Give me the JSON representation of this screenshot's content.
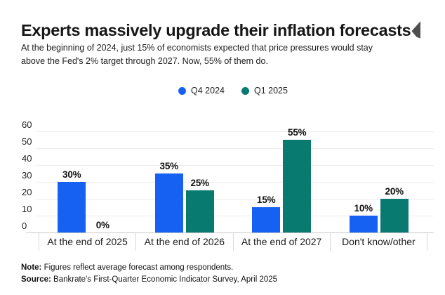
{
  "page": {
    "title": "Experts massively upgrade their inflation forecasts",
    "subtitle_lines": [
      "At the beginning of 2024, just 15% of economists expected that price pressures would stay",
      "above the Fed's 2% target through 2027. Now, 55% of them do."
    ],
    "note_label": "Note:",
    "note_text": " Figures reflect average forecast among respondents.",
    "source_label": "Source:",
    "source_text": " Bankrate's First-Quarter Economic Indicator Survey, April 2025"
  },
  "colors": {
    "q4_2024_blue": "#1660F2",
    "q1_2025_teal": "#087A70",
    "text": "#1B1B1B",
    "gridline": "#ECECEC",
    "axis_line": "#C8C8C8",
    "category_separator": "#D8D8D8"
  },
  "chart_data": {
    "type": "bar",
    "title": "Experts massively upgrade their inflation forecasts",
    "categories": [
      "At the end of 2025",
      "At the end of 2026",
      "At the end of 2027",
      "Don't know/other"
    ],
    "series": [
      {
        "name": "Q4 2024",
        "color": "#1660F2",
        "values": [
          30,
          35,
          15,
          10
        ],
        "labels": [
          "30%",
          "35%",
          "15%",
          "10%"
        ]
      },
      {
        "name": "Q1 2025",
        "color": "#087A70",
        "values": [
          0,
          25,
          55,
          20
        ],
        "labels": [
          "0%",
          "25%",
          "55%",
          "20%"
        ]
      }
    ],
    "y_ticks": [
      0,
      10,
      20,
      30,
      40,
      50,
      60
    ],
    "ylim": [
      0,
      60
    ],
    "unit": "%",
    "xlabel": "",
    "ylabel": "",
    "grid": true,
    "legend_position": "top-center"
  }
}
